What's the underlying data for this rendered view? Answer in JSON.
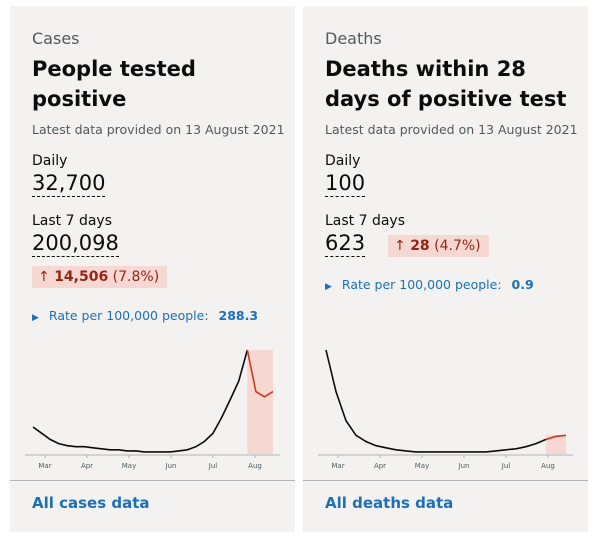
{
  "cases": {
    "caption": "Cases",
    "title": "People tested positive",
    "updated": "Latest data provided on 13 August 2021",
    "daily_label": "Daily",
    "daily_value": "32,700",
    "week_label": "Last 7 days",
    "week_value": "200,098",
    "change_arrow": "↑",
    "change_value": "14,506",
    "change_pct": "(7.8%)",
    "rate_label": "Rate per 100,000 people:",
    "rate_value": "288.3",
    "link": "All cases data",
    "chart_data": {
      "type": "line",
      "x_ticks": [
        "Mar",
        "Apr",
        "May",
        "Jun",
        "Jul",
        "Aug"
      ],
      "series": [
        {
          "values": [
            0.26,
            0.2,
            0.14,
            0.1,
            0.08,
            0.07,
            0.07,
            0.06,
            0.05,
            0.04,
            0.04,
            0.03,
            0.03,
            0.02,
            0.02,
            0.02,
            0.02,
            0.03,
            0.04,
            0.07,
            0.12,
            0.2,
            0.35,
            0.52,
            0.7,
            1.0,
            0.6,
            0.55,
            0.6
          ]
        }
      ],
      "highlight_last": 3,
      "line_color": "#0b0c0c",
      "highlight_color": "#f6d7d2",
      "highlight_line_color": "#d4351c"
    }
  },
  "deaths": {
    "caption": "Deaths",
    "title": "Deaths within 28 days of positive test",
    "updated": "Latest data provided on 13 August 2021",
    "daily_label": "Daily",
    "daily_value": "100",
    "week_label": "Last 7 days",
    "week_value": "623",
    "change_arrow": "↑",
    "change_value": "28",
    "change_pct": "(4.7%)",
    "rate_label": "Rate per 100,000 people:",
    "rate_value": "0.9",
    "link": "All deaths data",
    "chart_data": {
      "type": "line",
      "x_ticks": [
        "Mar",
        "Apr",
        "May",
        "Jun",
        "Jul",
        "Aug"
      ],
      "series": [
        {
          "values": [
            1.0,
            0.6,
            0.32,
            0.18,
            0.12,
            0.08,
            0.06,
            0.04,
            0.03,
            0.02,
            0.02,
            0.02,
            0.02,
            0.02,
            0.02,
            0.02,
            0.02,
            0.03,
            0.04,
            0.05,
            0.07,
            0.1,
            0.14,
            0.17,
            0.18
          ]
        }
      ],
      "highlight_last": 2,
      "line_color": "#0b0c0c",
      "highlight_color": "#f6d7d2",
      "highlight_line_color": "#d4351c"
    }
  }
}
